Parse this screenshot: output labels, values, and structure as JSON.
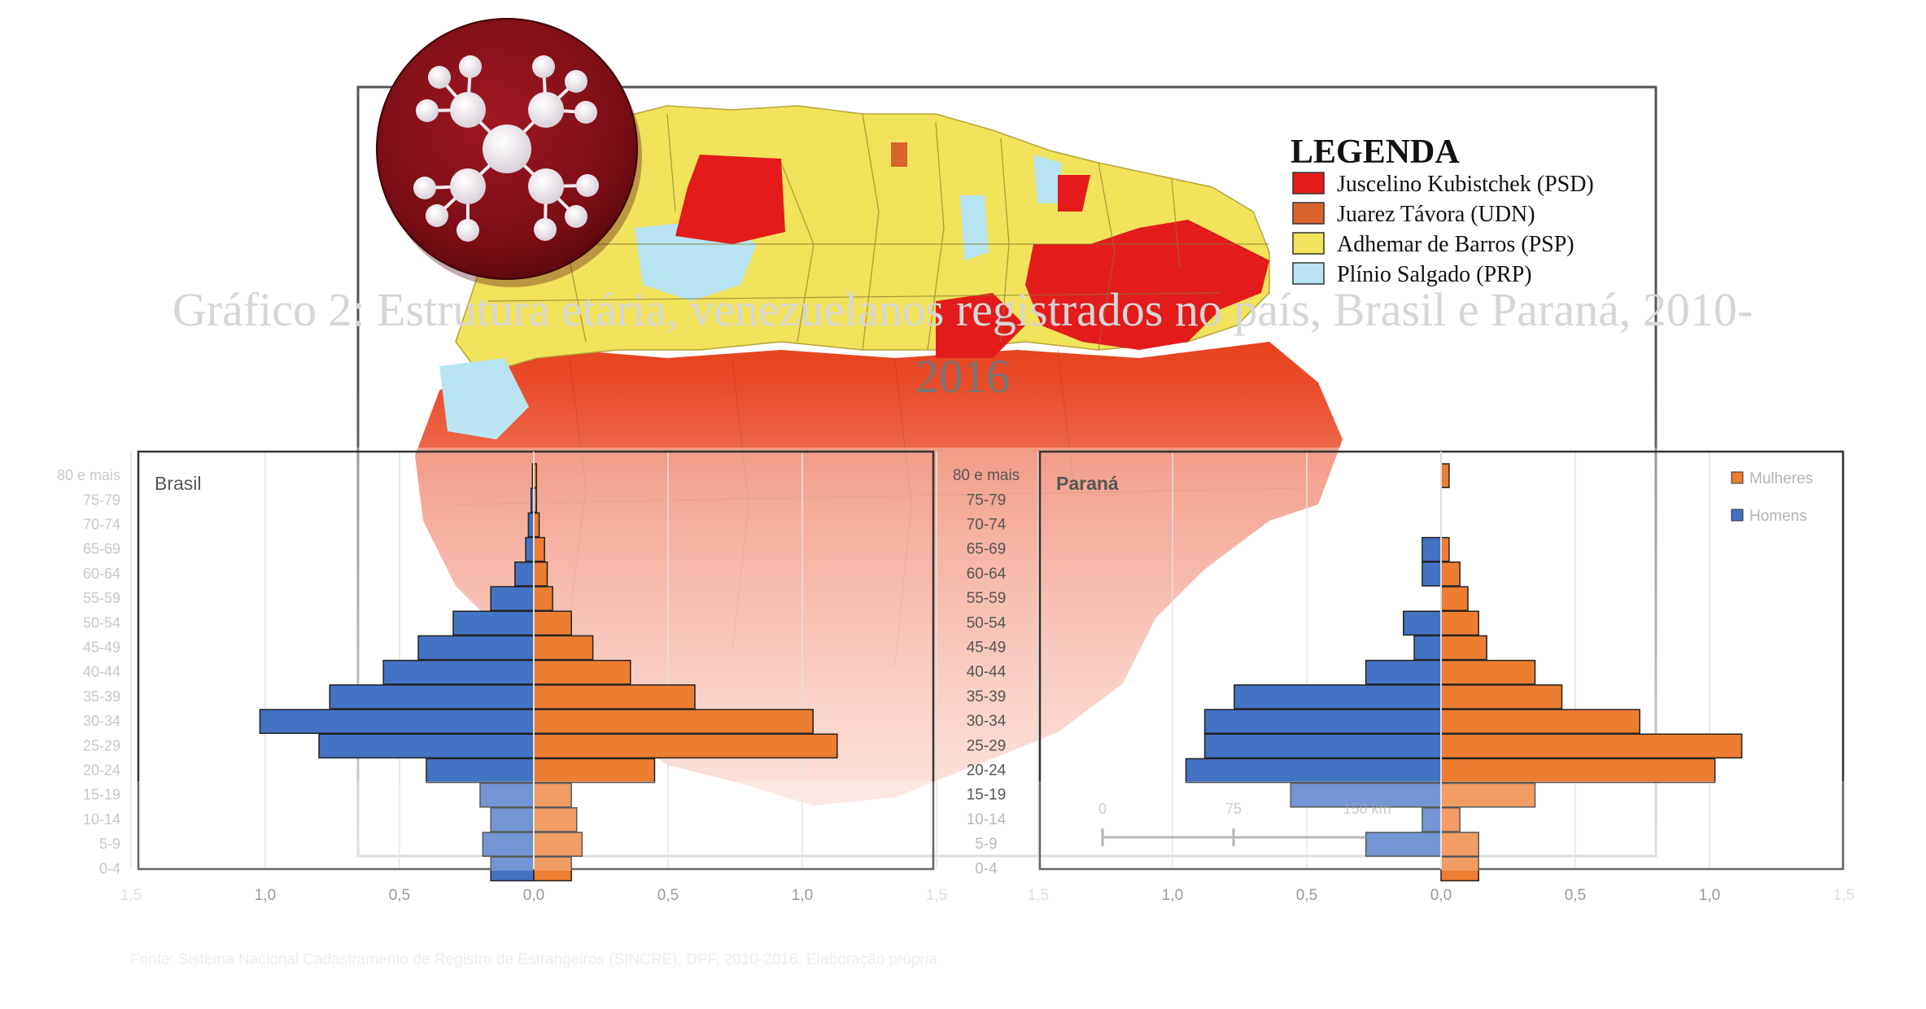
{
  "map": {
    "legend": {
      "title": "LEGENDA",
      "items": [
        {
          "label": "Juscelino Kubistchek (PSD)",
          "color": "#e31b1b"
        },
        {
          "label": "Juarez Távora (UDN)",
          "color": "#d9642b"
        },
        {
          "label": "Adhemar de Barros (PSP)",
          "color": "#f1e35b"
        },
        {
          "label": "Plínio Salgado (PRP)",
          "color": "#b8e4f3"
        }
      ]
    },
    "scale_labels": [
      "0",
      "75",
      "150 km"
    ]
  },
  "logo": {
    "name": "network-logo"
  },
  "chart_data": {
    "type": "bar",
    "subtype": "population-pyramid",
    "title_line1": "Gráfico 2: Estrutura etária, venezuelanos registrados no país, Brasil e Paraná, 2010-",
    "title_line2": "2016",
    "source": "Fonte: Sistema Nacional Cadastramento de Registro de Estrangeiros (SINCRE), DPF, 2010-2016. Elaboração própria",
    "categories": [
      "80 e mais",
      "75-79",
      "70-74",
      "65-69",
      "60-64",
      "55-59",
      "50-54",
      "45-49",
      "40-44",
      "35-39",
      "30-34",
      "25-29",
      "20-24",
      "15-19",
      "10-14",
      "5-9",
      "0-4"
    ],
    "xticks": [
      "1,5",
      "1,0",
      "0,5",
      "0,0",
      "0,5",
      "1,0",
      "1,5"
    ],
    "xtick_values": [
      -1.5,
      -1.0,
      -0.5,
      0,
      0.5,
      1.0,
      1.5
    ],
    "xlim": [
      -1.5,
      1.5
    ],
    "legend": [
      {
        "name": "Mulheres",
        "color": "#ed7d31"
      },
      {
        "name": "Homens",
        "color": "#4472c4"
      }
    ],
    "panels": [
      {
        "name": "Brasil",
        "homens": [
          0.005,
          0.01,
          0.02,
          0.03,
          0.07,
          0.16,
          0.3,
          0.43,
          0.56,
          0.76,
          1.02,
          0.8,
          0.4,
          0.2,
          0.16,
          0.19,
          0.16
        ],
        "mulheres": [
          0.01,
          0.01,
          0.02,
          0.04,
          0.05,
          0.07,
          0.14,
          0.22,
          0.36,
          0.6,
          1.04,
          1.13,
          0.45,
          0.14,
          0.16,
          0.18,
          0.14
        ]
      },
      {
        "name": "Paraná",
        "homens": [
          0.0,
          0.0,
          0.0,
          0.07,
          0.07,
          0.0,
          0.14,
          0.1,
          0.28,
          0.77,
          0.88,
          0.88,
          0.95,
          0.56,
          0.07,
          0.28,
          0.0
        ],
        "mulheres": [
          0.03,
          0.0,
          0.0,
          0.03,
          0.07,
          0.1,
          0.14,
          0.17,
          0.35,
          0.45,
          0.74,
          1.12,
          1.02,
          0.35,
          0.07,
          0.14,
          0.14
        ]
      }
    ]
  }
}
